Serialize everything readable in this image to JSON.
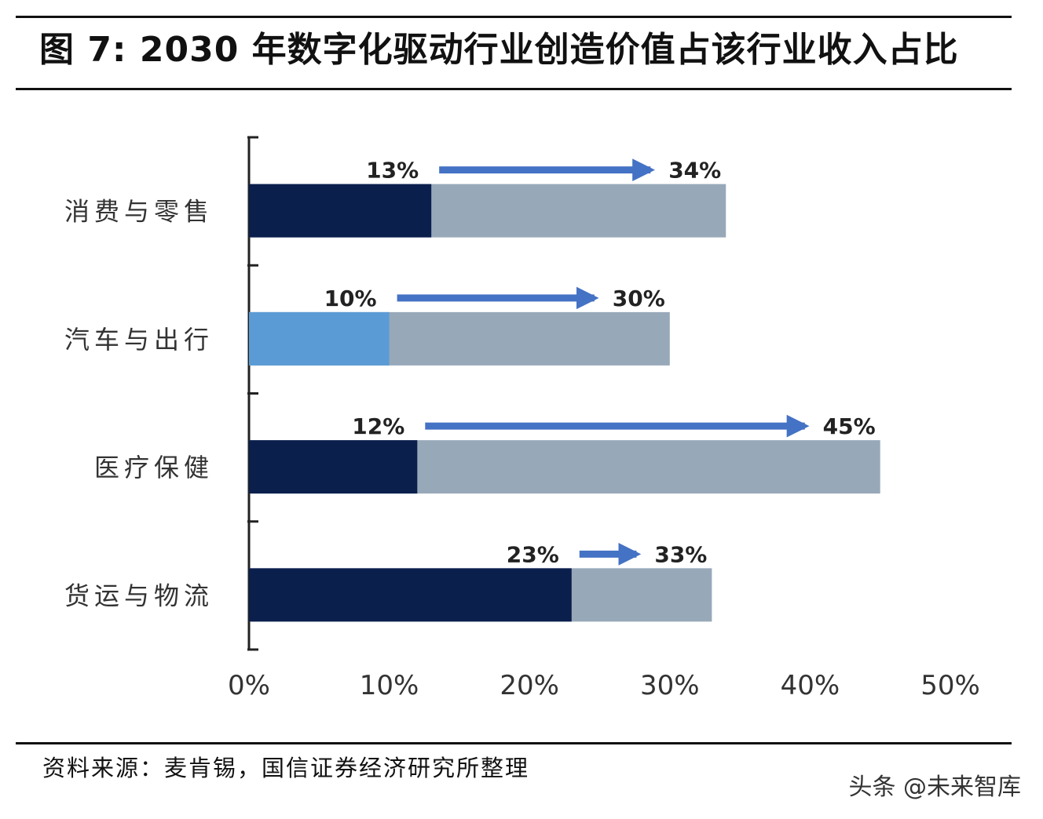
{
  "header": {
    "title": "图 7: 2030 年数字化驱动行业创造价值占该行业收入占比"
  },
  "chart_data": {
    "type": "bar",
    "orientation": "horizontal",
    "title": "",
    "xlabel": "",
    "ylabel": "",
    "xlim": [
      0,
      50
    ],
    "x_ticks": [
      "0%",
      "10%",
      "20%",
      "30%",
      "40%",
      "50%"
    ],
    "categories": [
      "消费与零售",
      "汽车与出行",
      "医疗保健",
      "货运与物流"
    ],
    "series": [
      {
        "values": [
          13,
          10,
          12,
          23
        ],
        "labels": [
          "13%",
          "10%",
          "12%",
          "23%"
        ],
        "colors": [
          "#0b1f4d",
          "#5b9bd5",
          "#0b1f4d",
          "#0b1f4d"
        ]
      },
      {
        "values": [
          34,
          30,
          45,
          33
        ],
        "labels": [
          "34%",
          "30%",
          "45%",
          "33%"
        ],
        "color": "#97a8b9"
      }
    ],
    "arrow_color": "#4472c4",
    "grid": false,
    "legend": "none"
  },
  "footer": {
    "source": "资料来源：麦肯锡，国信证券经济研究所整理",
    "watermark": "头条 @未来智库"
  }
}
